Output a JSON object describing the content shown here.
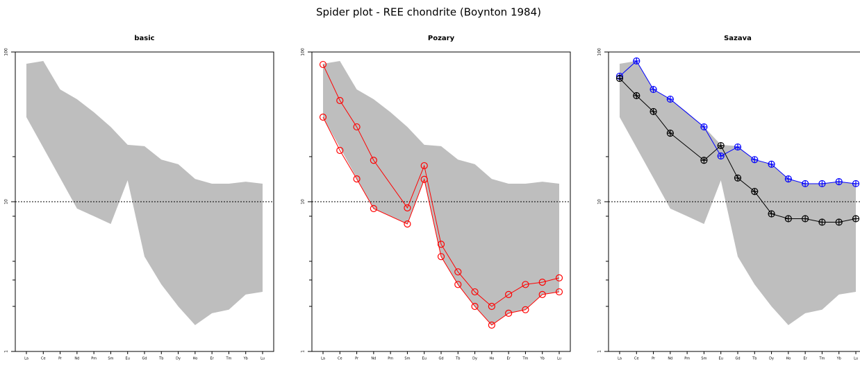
{
  "title": "Spider plot - REE chondrite (Boynton 1984)",
  "chart_data": [
    {
      "type": "line",
      "title": "basic",
      "log": true,
      "ylim": [
        1,
        100
      ],
      "yticks": [
        1,
        10,
        100
      ],
      "yminorticks": [
        2,
        3,
        4,
        8,
        20
      ],
      "refline": 10,
      "categories": [
        "La",
        "Ce",
        "Pr",
        "Nd",
        "Pm",
        "Sm",
        "Eu",
        "Gd",
        "Tb",
        "Dy",
        "Ho",
        "Er",
        "Tm",
        "Yb",
        "Lu"
      ],
      "band": {
        "color": "#bebebe",
        "upper": [
          83.4,
          87.1,
          56.2,
          48.4,
          39.6,
          31.6,
          24.0,
          23.5,
          19.1,
          17.8,
          14.2,
          13.2,
          13.2,
          13.6,
          13.2
        ],
        "lower": [
          36.7,
          23.0,
          14.4,
          9.0,
          8.0,
          7.1,
          13.9,
          4.3,
          2.8,
          2.0,
          1.5,
          1.8,
          1.9,
          2.4,
          2.5
        ]
      },
      "series": []
    },
    {
      "type": "line",
      "title": "Pozary",
      "log": true,
      "ylim": [
        1,
        100
      ],
      "yticks": [
        1,
        10,
        100
      ],
      "yminorticks": [
        2,
        3,
        4,
        8,
        20
      ],
      "refline": 10,
      "marker": "circle",
      "categories": [
        "La",
        "Ce",
        "Pr",
        "Nd",
        "Pm",
        "Sm",
        "Eu",
        "Gd",
        "Tb",
        "Dy",
        "Ho",
        "Er",
        "Tm",
        "Yb",
        "Lu"
      ],
      "band": {
        "color": "#bebebe",
        "upper": [
          83.4,
          87.1,
          56.2,
          48.4,
          39.6,
          31.6,
          24.0,
          23.5,
          19.1,
          17.8,
          14.2,
          13.2,
          13.2,
          13.6,
          13.2
        ],
        "lower": [
          36.7,
          23.0,
          14.4,
          9.0,
          8.0,
          7.1,
          13.9,
          4.3,
          2.8,
          2.0,
          1.5,
          1.8,
          1.9,
          2.4,
          2.5
        ]
      },
      "series": [
        {
          "color": "#ff0000",
          "values": [
            82.5,
            47.4,
            31.6,
            18.9,
            null,
            9.1,
            17.4,
            5.2,
            3.4,
            2.5,
            2.0,
            2.4,
            2.8,
            2.9,
            3.1
          ]
        },
        {
          "color": "#ff0000",
          "values": [
            36.7,
            22.0,
            14.2,
            9.0,
            null,
            7.1,
            14.1,
            4.3,
            2.8,
            2.0,
            1.5,
            1.8,
            1.9,
            2.4,
            2.5
          ]
        }
      ]
    },
    {
      "type": "line",
      "title": "Sazava",
      "log": true,
      "ylim": [
        1,
        100
      ],
      "yticks": [
        1,
        10,
        100
      ],
      "yminorticks": [
        2,
        3,
        4,
        8,
        20
      ],
      "refline": 10,
      "marker": "circle-plus",
      "categories": [
        "La",
        "Ce",
        "Pr",
        "Nd",
        "Pm",
        "Sm",
        "Eu",
        "Gd",
        "Tb",
        "Dy",
        "Ho",
        "Er",
        "Tm",
        "Yb",
        "Lu"
      ],
      "band": {
        "color": "#bebebe",
        "upper": [
          83.4,
          87.1,
          56.2,
          48.4,
          39.6,
          31.6,
          24.0,
          23.5,
          19.1,
          17.8,
          14.2,
          13.2,
          13.2,
          13.6,
          13.2
        ],
        "lower": [
          36.7,
          23.0,
          14.4,
          9.0,
          8.0,
          7.1,
          13.9,
          4.3,
          2.8,
          2.0,
          1.5,
          1.8,
          1.9,
          2.4,
          2.5
        ]
      },
      "series": [
        {
          "color": "#0000ff",
          "values": [
            68.9,
            87.1,
            56.2,
            48.4,
            null,
            31.6,
            20.2,
            23.2,
            19.1,
            17.8,
            14.2,
            13.2,
            13.2,
            13.6,
            13.2
          ]
        },
        {
          "color": "#000000",
          "values": [
            66.7,
            51.1,
            40.0,
            28.7,
            null,
            18.9,
            23.7,
            14.4,
            11.7,
            8.3,
            7.7,
            7.7,
            7.3,
            7.3,
            7.7
          ]
        }
      ]
    }
  ]
}
